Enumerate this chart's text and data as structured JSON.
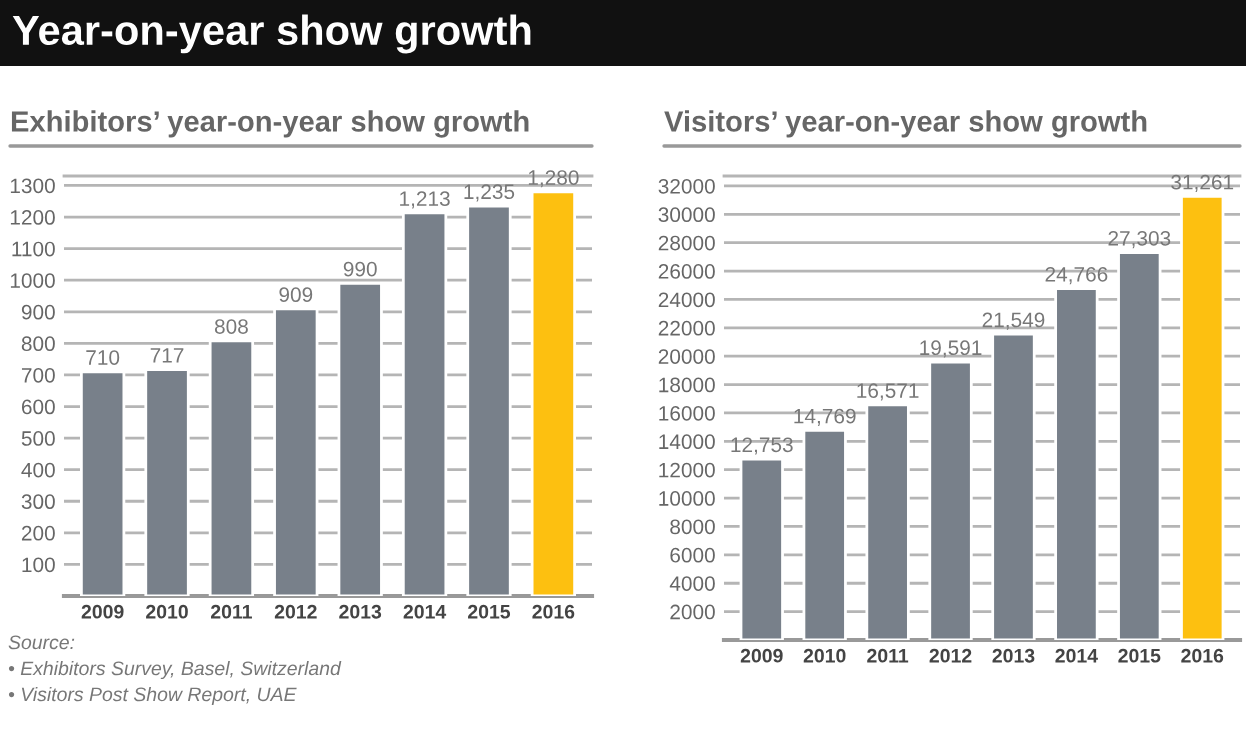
{
  "chart_data": [
    {
      "type": "bar",
      "title": "Exhibitors’ year-on-year show growth",
      "categories": [
        "2009",
        "2010",
        "2011",
        "2012",
        "2013",
        "2014",
        "2015",
        "2016"
      ],
      "values": [
        710,
        717,
        808,
        909,
        990,
        1213,
        1235,
        1280
      ],
      "colors": [
        "#78808a",
        "#78808a",
        "#78808a",
        "#78808a",
        "#78808a",
        "#78808a",
        "#78808a",
        "#fdc010"
      ],
      "value_labels": [
        "710",
        "717",
        "808",
        "909",
        "990",
        "1,213",
        "1,235",
        "1,280"
      ],
      "ylim": [
        0,
        1330
      ],
      "yticks": [
        100,
        200,
        300,
        400,
        500,
        600,
        700,
        800,
        900,
        1000,
        1100,
        1200,
        1300
      ],
      "grid": "y",
      "annotations": [
        "Year-on-year show growth",
        "Source:",
        "• Exhibitors Survey, Basel, Switzerland",
        "• Visitors Post Show Report, UAE"
      ]
    },
    {
      "type": "bar",
      "title": "Visitors’ year-on-year show growth",
      "categories": [
        "2009",
        "2010",
        "2011",
        "2012",
        "2013",
        "2014",
        "2015",
        "2016"
      ],
      "values": [
        12753,
        14769,
        16571,
        19591,
        21549,
        24766,
        27303,
        31261
      ],
      "colors": [
        "#78808a",
        "#78808a",
        "#78808a",
        "#78808a",
        "#78808a",
        "#78808a",
        "#78808a",
        "#fdc010"
      ],
      "value_labels": [
        "12,753",
        "14,769",
        "16,571",
        "19,591",
        "21,549",
        "24,766",
        "27,303",
        "31,261"
      ],
      "ylim": [
        0,
        32700
      ],
      "yticks": [
        2000,
        4000,
        6000,
        8000,
        10000,
        12000,
        14000,
        16000,
        18000,
        20000,
        22000,
        24000,
        26000,
        28000,
        30000,
        32000
      ],
      "grid": "y"
    }
  ]
}
